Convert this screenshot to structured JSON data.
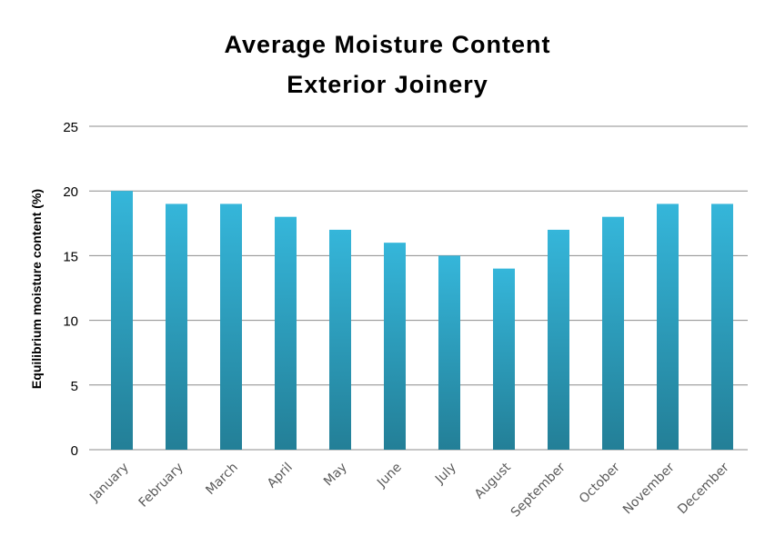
{
  "chart_data": {
    "type": "bar",
    "title_line1": "Average  Moisture  Content",
    "title_line2": "Exterior Joinery",
    "xlabel": "",
    "ylabel": "Equilibrium  moisture content (%)",
    "categories": [
      "January",
      "February",
      "March",
      "April",
      "May",
      "June",
      "July",
      "August",
      "September",
      "October",
      "November",
      "December"
    ],
    "values": [
      20,
      19,
      19,
      18,
      17,
      16,
      15,
      14,
      17,
      18,
      19,
      19
    ],
    "ylim": [
      0,
      25
    ],
    "yticks": [
      0,
      5,
      10,
      15,
      20,
      25
    ],
    "grid": true,
    "legend": "none",
    "colors": {
      "bar_top": "#35b6da",
      "bar_bottom": "#237f97",
      "grid": "#8c8c8c",
      "tick_label": "#595959"
    }
  }
}
